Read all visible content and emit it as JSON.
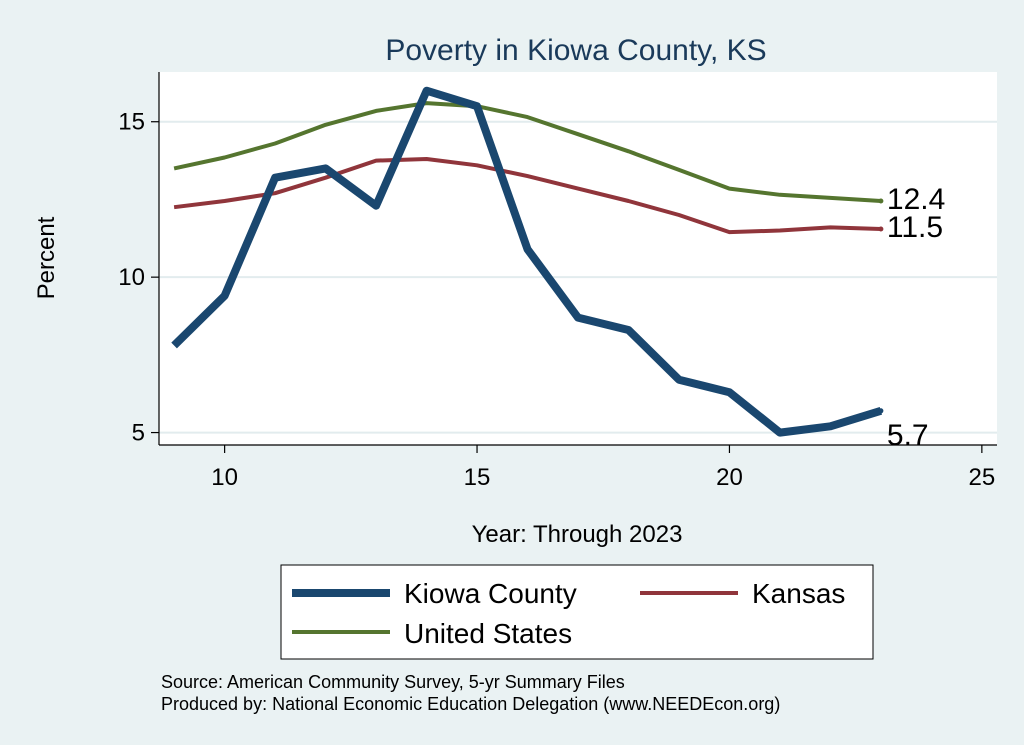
{
  "chart_data": {
    "type": "line",
    "title": "Poverty in Kiowa County, KS",
    "xlabel": "Year: Through 2023",
    "ylabel": "Percent",
    "xlim": [
      8.7,
      25.3
    ],
    "ylim": [
      4.6,
      16.6
    ],
    "xticks": [
      10,
      15,
      20,
      25
    ],
    "yticks": [
      5,
      10,
      15
    ],
    "grid": true,
    "legend_position": "bottom",
    "x": [
      9,
      10,
      11,
      12,
      13,
      14,
      15,
      16,
      17,
      18,
      19,
      20,
      21,
      22,
      23
    ],
    "series": [
      {
        "name": "Kiowa County",
        "color": "#1a476f",
        "values": [
          7.8,
          9.4,
          13.2,
          13.5,
          12.3,
          16.0,
          15.5,
          10.9,
          8.7,
          8.3,
          6.7,
          6.3,
          5.0,
          5.2,
          5.7
        ],
        "end_label": "5.7"
      },
      {
        "name": "Kansas",
        "color": "#90353b",
        "values": [
          12.25,
          12.45,
          12.7,
          13.2,
          13.75,
          13.8,
          13.6,
          13.25,
          12.85,
          12.45,
          12.0,
          11.45,
          11.5,
          11.6,
          11.55
        ],
        "end_label": "11.5"
      },
      {
        "name": "United States",
        "color": "#55752f",
        "values": [
          13.5,
          13.85,
          14.3,
          14.9,
          15.35,
          15.6,
          15.5,
          15.15,
          14.6,
          14.05,
          13.45,
          12.85,
          12.65,
          12.55,
          12.45
        ],
        "end_label": "12.4"
      }
    ]
  },
  "source_lines": [
    "Source: American Community Survey, 5-yr Summary Files",
    "Produced by: National Economic Education Delegation (www.NEEDEcon.org)"
  ]
}
